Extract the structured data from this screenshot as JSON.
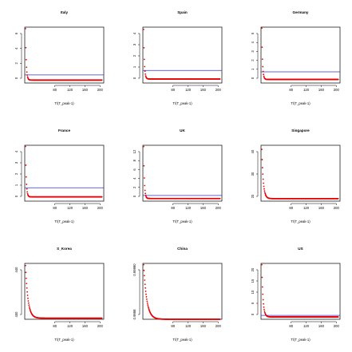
{
  "colors": {
    "points": "#e60000",
    "hline": "#3333cc",
    "axes": "#000000"
  },
  "chart_data": [
    {
      "type": "scatter",
      "title": "Italy",
      "xlabel": "T/(T_peak-1)",
      "xlim": [
        0,
        210
      ],
      "xticks": [
        "80",
        "120",
        "160",
        "200"
      ],
      "ylim": [
        -0.1,
        7.5
      ],
      "yticks": [
        "0",
        "2",
        "4",
        "6"
      ],
      "hline": 1.0,
      "y_start": 7.3,
      "y_floor": 0.3,
      "decay": 0.5,
      "x_start": 2,
      "x_end": 205,
      "n_points": 220
    },
    {
      "type": "scatter",
      "title": "Spain",
      "xlabel": "T/(T_peak-1)",
      "xlim": [
        0,
        210
      ],
      "xticks": [
        "80",
        "120",
        "160",
        "200"
      ],
      "ylim": [
        -0.1,
        4.8
      ],
      "yticks": [
        "0",
        "1",
        "2",
        "3",
        "4"
      ],
      "hline": 1.0,
      "y_start": 4.6,
      "y_floor": 0.25,
      "decay": 0.5,
      "x_start": 2,
      "x_end": 205,
      "n_points": 220
    },
    {
      "type": "scatter",
      "title": "Germany",
      "xlabel": "T/(T_peak-1)",
      "xlim": [
        0,
        210
      ],
      "xticks": [
        "80",
        "120",
        "160",
        "200"
      ],
      "ylim": [
        -0.1,
        5.4
      ],
      "yticks": [
        "0",
        "1",
        "2",
        "3",
        "4",
        "5"
      ],
      "hline": 1.0,
      "y_start": 5.3,
      "y_floor": 0.25,
      "decay": 0.5,
      "x_start": 2,
      "x_end": 205,
      "n_points": 220
    },
    {
      "type": "scatter",
      "title": "France",
      "xlabel": "T/(T_peak-1)",
      "xlim": [
        0,
        210
      ],
      "xticks": [
        "80",
        "120",
        "160",
        "200"
      ],
      "ylim": [
        -0.1,
        4.5
      ],
      "yticks": [
        "0",
        "1",
        "2",
        "3",
        "4"
      ],
      "hline": 1.0,
      "y_start": 4.4,
      "y_floor": 0.25,
      "decay": 0.5,
      "x_start": 2,
      "x_end": 205,
      "n_points": 220
    },
    {
      "type": "scatter",
      "title": "UK",
      "xlabel": "T/(T_peak-1)",
      "xlim": [
        0,
        210
      ],
      "xticks": [
        "80",
        "120",
        "160",
        "200"
      ],
      "ylim": [
        -0.3,
        12.5
      ],
      "yticks": [
        "0",
        "2",
        "4",
        "6",
        "8",
        "12"
      ],
      "hline": 1.0,
      "y_start": 12.2,
      "y_floor": 0.3,
      "decay": 0.5,
      "x_start": 2,
      "x_end": 205,
      "n_points": 220
    },
    {
      "type": "scatter",
      "title": "Singapore",
      "xlabel": "T/(T_peak-1)",
      "xlim": [
        0,
        210
      ],
      "xticks": [
        "80",
        "120",
        "160",
        "200"
      ],
      "ylim": [
        19,
        46
      ],
      "yticks": [
        "20",
        "30",
        "40"
      ],
      "hline": null,
      "y_start": 44,
      "y_floor": 20.2,
      "decay": 0.25,
      "x_start": 2,
      "x_end": 205,
      "n_points": 220
    },
    {
      "type": "scatter",
      "title": "S_Korea",
      "xlabel": "T/(T_peak-1)",
      "xlim": [
        0,
        210
      ],
      "xticks": [
        "80",
        "120",
        "160",
        "200"
      ],
      "ylim": [
        380,
        482
      ],
      "yticks": [
        "400",
        "440"
      ],
      "hline": null,
      "y_start": 478,
      "y_floor": 382,
      "decay": 0.15,
      "x_start": 2,
      "x_end": 205,
      "n_points": 220
    },
    {
      "type": "scatter",
      "title": "China",
      "xlabel": "T/(T_peak-1)",
      "xlim": [
        0,
        210
      ],
      "xticks": [
        "80",
        "120",
        "160",
        "200"
      ],
      "ylim": [
        0.9998,
        1.00066
      ],
      "yticks": [
        "0.9998",
        "0.99990"
      ],
      "hline": null,
      "y_start": 1.00064,
      "y_floor": 0.9998,
      "decay": 0.12,
      "x_start": 2,
      "x_end": 205,
      "n_points": 220
    },
    {
      "type": "scatter",
      "title": "US",
      "xlabel": "T/(T_peak-1)",
      "xlim": [
        0,
        210
      ],
      "xticks": [
        "80",
        "120",
        "160",
        "200"
      ],
      "ylim": [
        -0.5,
        21
      ],
      "yticks": [
        "0",
        "5",
        "10",
        "15",
        "20"
      ],
      "hline": 1.0,
      "y_start": 20.5,
      "y_floor": 0.4,
      "decay": 0.3,
      "x_start": 2,
      "x_end": 205,
      "n_points": 220
    }
  ]
}
